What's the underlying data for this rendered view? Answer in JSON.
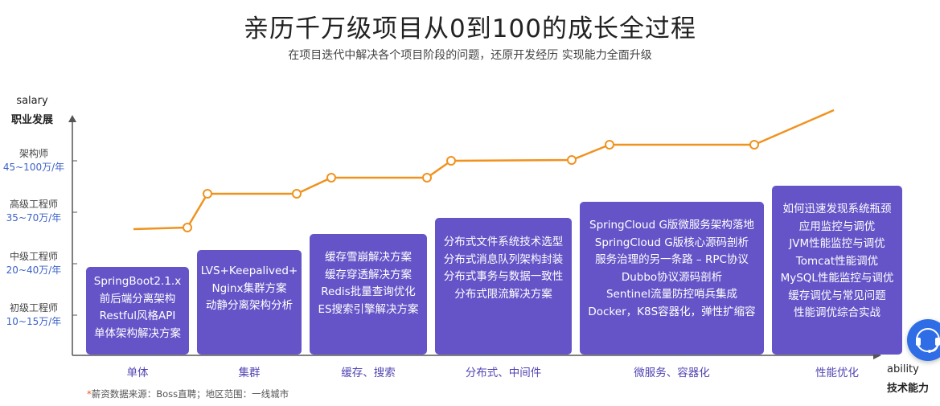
{
  "header": {
    "title": "亲历千万级项目从0到100的成长全过程",
    "subtitle": "在项目迭代中解决各个项目阶段的问题，还原开发经历 实现能力全面升级"
  },
  "y_axis": {
    "title_en": "salary",
    "title_zh": "职业发展",
    "levels": [
      {
        "name": "架构师",
        "salary": "45~100万/年"
      },
      {
        "name": "高级工程师",
        "salary": "35~70万/年"
      },
      {
        "name": "中级工程师",
        "salary": "20~40万/年"
      },
      {
        "name": "初级工程师",
        "salary": "10~15万/年"
      }
    ]
  },
  "x_axis": {
    "title_en": "ability",
    "title_zh": "技术能力"
  },
  "stages": [
    {
      "label": "单体",
      "items": [
        "SpringBoot2.1.x",
        "前后端分离架构",
        "Restful风格API",
        "单体架构解决方案"
      ]
    },
    {
      "label": "集群",
      "items": [
        "LVS+Keepalived+",
        "Nginx集群方案",
        "动静分离架构分析"
      ]
    },
    {
      "label": "缓存、搜索",
      "items": [
        "缓存雪崩解决方案",
        "缓存穿透解决方案",
        "Redis批量查询优化",
        "ES搜索引擎解决方案"
      ]
    },
    {
      "label": "分布式、中间件",
      "items": [
        "分布式文件系统技术选型",
        "分布式消息队列架构封装",
        "分布式事务与数据一致性",
        "分布式限流解决方案"
      ]
    },
    {
      "label": "微服务、容器化",
      "items": [
        "SpringCloud G版微服务架构落地",
        "SpringCloud G版核心源码剖析",
        "服务治理的另一条路 – RPC协议",
        "Dubbo协议源码剖析",
        "Sentinel流量防控哨兵集成",
        "Docker，K8S容器化，弹性扩缩容"
      ]
    },
    {
      "label": "性能优化",
      "items": [
        "如何迅速发现系统瓶颈",
        "应用监控与调优",
        "JVM性能监控与调优",
        "Tomcat性能调优",
        "MySQL性能监控与调优",
        "缓存调优与常见问题",
        "性能调优综合实战"
      ]
    }
  ],
  "footnote": {
    "star": "*",
    "text": "薪资数据来源：Boss直聘；地区范围：一线城市"
  },
  "colors": {
    "accent_line": "#f0921e",
    "box_fill": "#6554c7",
    "salary_text": "#3d63c9",
    "support_button": "#2f6de6"
  },
  "support_button": {
    "icon": "headset-icon"
  }
}
